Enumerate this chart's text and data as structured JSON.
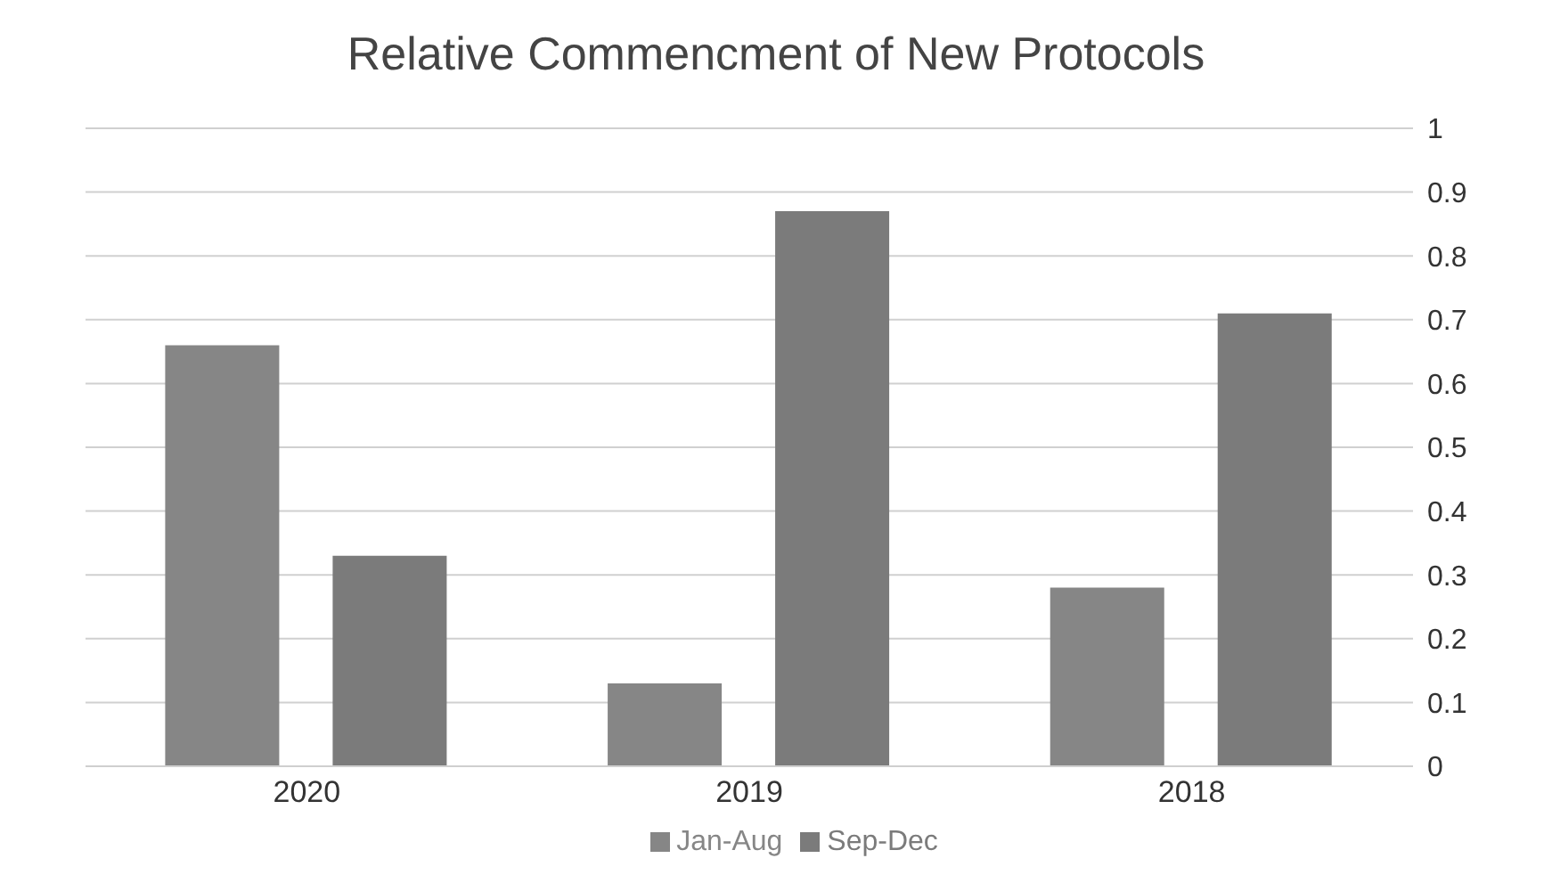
{
  "chart_data": {
    "type": "bar",
    "title": "Relative Commencment of New Protocols",
    "categories": [
      "2020",
      "2019",
      "2018"
    ],
    "series": [
      {
        "name": "Jan-Aug",
        "color": "#868686",
        "values": [
          0.66,
          0.13,
          0.28
        ]
      },
      {
        "name": "Sep-Dec",
        "color": "#7b7b7b",
        "values": [
          0.33,
          0.87,
          0.71
        ]
      }
    ],
    "ylim": [
      0,
      1
    ],
    "yticks": [
      0,
      0.1,
      0.2,
      0.3,
      0.4,
      0.5,
      0.6,
      0.7,
      0.8,
      0.9,
      1
    ],
    "grid": "y",
    "legend": "bottom"
  }
}
